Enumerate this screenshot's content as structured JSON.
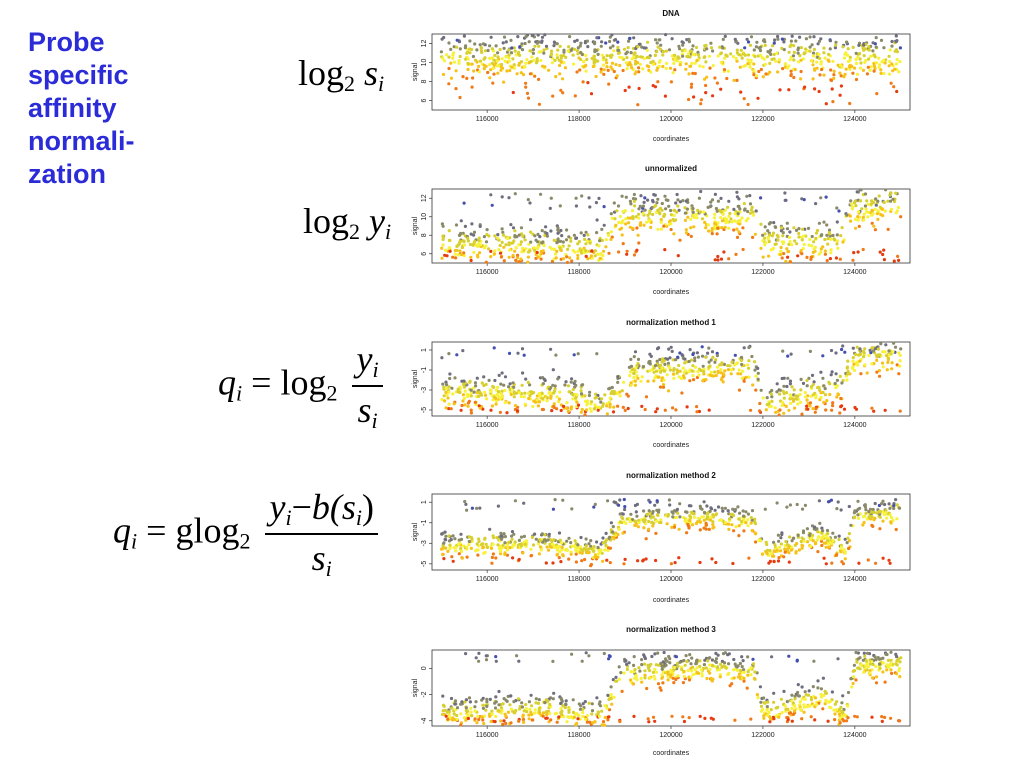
{
  "title_lines": [
    "Probe",
    "specific",
    "affinity",
    "normali-",
    "zation"
  ],
  "formulas": {
    "f1": {
      "base": "log",
      "sub": "2",
      "var": "s",
      "var_sub": "i"
    },
    "f2": {
      "base": "log",
      "sub": "2",
      "var": "y",
      "var_sub": "i"
    },
    "f3": {
      "lhs": "q",
      "lhs_sub": "i",
      "eq": "=",
      "base": "log",
      "sub": "2",
      "num": "y",
      "num_sub": "i",
      "den": "s",
      "den_sub": "i"
    },
    "f4": {
      "lhs": "q",
      "lhs_sub": "i",
      "eq": "=",
      "base": "glog",
      "sub": "2",
      "num_a": "y",
      "num_a_sub": "i",
      "minus": "−",
      "num_b": "b(s",
      "num_b_sub": "i",
      "num_b_close": ")",
      "den": "s",
      "den_sub": "i"
    }
  },
  "colors": {
    "title": "#2b2bd8"
  },
  "chart_data": [
    {
      "type": "scatter",
      "title": "DNA",
      "xlabel": "coordinates",
      "ylabel": "signal",
      "xlim": [
        114800,
        125200
      ],
      "ylim": [
        5,
        13
      ],
      "xticks": [
        116000,
        118000,
        120000,
        122000,
        124000
      ],
      "yticks": [
        6,
        8,
        10,
        12
      ],
      "x_range": [
        115000,
        125000
      ],
      "profile": [
        [
          115000,
          10.5
        ],
        [
          125000,
          10.5
        ]
      ],
      "spread": 1.2,
      "low_tail": [
        5.5,
        8
      ],
      "high_tail": [
        11.5,
        12.8
      ],
      "color_scale": [
        "#e63b10",
        "#f07a18",
        "#f6c21a",
        "#f8f23a",
        "#d8d030",
        "#8a8a6a",
        "#6e6e7e",
        "#4450b0"
      ],
      "n_points": 900
    },
    {
      "type": "scatter",
      "title": "unnormalized",
      "xlabel": "coordinates",
      "ylabel": "signal",
      "xlim": [
        114800,
        125200
      ],
      "ylim": [
        5,
        13
      ],
      "xticks": [
        116000,
        118000,
        120000,
        122000,
        124000
      ],
      "yticks": [
        6,
        8,
        10,
        12
      ],
      "x_range": [
        115000,
        125000
      ],
      "profile": [
        [
          115000,
          7.2
        ],
        [
          118500,
          6.6
        ],
        [
          118800,
          10.2
        ],
        [
          121800,
          10.0
        ],
        [
          122000,
          7.2
        ],
        [
          123700,
          7.4
        ],
        [
          123900,
          11.0
        ],
        [
          125000,
          11.3
        ]
      ],
      "spread": 1.1,
      "low_tail": [
        5.2,
        6.5
      ],
      "high_tail": [
        10.5,
        12.6
      ],
      "color_scale": [
        "#e63b10",
        "#f07a18",
        "#f6c21a",
        "#f8f23a",
        "#d8d030",
        "#8a8a6a",
        "#6e6e7e",
        "#4450b0"
      ],
      "n_points": 900
    },
    {
      "type": "scatter",
      "title": "normalization method 1",
      "xlabel": "coordinates",
      "ylabel": "signal",
      "xlim": [
        114800,
        125200
      ],
      "ylim": [
        -5.6,
        1.8
      ],
      "xticks": [
        116000,
        118000,
        120000,
        122000,
        124000
      ],
      "yticks": [
        -5,
        -3,
        -1,
        1
      ],
      "x_range": [
        115000,
        125000
      ],
      "profile": [
        [
          115000,
          -3.2
        ],
        [
          117500,
          -3.4
        ],
        [
          118500,
          -4.5
        ],
        [
          119200,
          -1.2
        ],
        [
          121800,
          -0.6
        ],
        [
          122000,
          -4.3
        ],
        [
          123700,
          -2.6
        ],
        [
          124000,
          0.2
        ],
        [
          125000,
          0.6
        ]
      ],
      "spread": 0.9,
      "low_tail": [
        -5.3,
        -4.5
      ],
      "high_tail": [
        0.2,
        1.4
      ],
      "color_scale": [
        "#e63b10",
        "#f07a18",
        "#f6c21a",
        "#f8f23a",
        "#d8d030",
        "#8a8a6a",
        "#6e6e7e",
        "#4450b0"
      ],
      "n_points": 900
    },
    {
      "type": "scatter",
      "title": "normalization method 2",
      "xlabel": "coordinates",
      "ylabel": "signal",
      "xlim": [
        114800,
        125200
      ],
      "ylim": [
        -5.6,
        1.8
      ],
      "xticks": [
        116000,
        118000,
        120000,
        122000,
        124000
      ],
      "yticks": [
        -5,
        -3,
        -1,
        1
      ],
      "x_range": [
        115000,
        125000
      ],
      "profile": [
        [
          115000,
          -3.2
        ],
        [
          117300,
          -3.0
        ],
        [
          118500,
          -3.8
        ],
        [
          118900,
          -1.0
        ],
        [
          120500,
          -0.4
        ],
        [
          121800,
          -0.8
        ],
        [
          122000,
          -3.7
        ],
        [
          123300,
          -2.2
        ],
        [
          123800,
          -3.8
        ],
        [
          124000,
          -0.5
        ],
        [
          125000,
          0.0
        ]
      ],
      "spread": 0.6,
      "low_tail": [
        -5.0,
        -4.4
      ],
      "high_tail": [
        0.2,
        1.3
      ],
      "color_scale": [
        "#e63b10",
        "#f07a18",
        "#f6c21a",
        "#f8f23a",
        "#d8d030",
        "#8a8a6a",
        "#6e6e7e",
        "#4450b0"
      ],
      "n_points": 900
    },
    {
      "type": "scatter",
      "title": "normalization method 3",
      "xlabel": "coordinates",
      "ylabel": "signal",
      "xlim": [
        114800,
        125200
      ],
      "ylim": [
        -4.4,
        1.4
      ],
      "xticks": [
        116000,
        118000,
        120000,
        122000,
        124000
      ],
      "yticks": [
        -4,
        -2,
        0
      ],
      "x_range": [
        115000,
        125000
      ],
      "profile": [
        [
          115000,
          -3.4
        ],
        [
          117300,
          -3.0
        ],
        [
          118500,
          -3.6
        ],
        [
          118900,
          -0.6
        ],
        [
          120500,
          0.1
        ],
        [
          121800,
          -0.3
        ],
        [
          122000,
          -3.4
        ],
        [
          123300,
          -2.0
        ],
        [
          123800,
          -3.6
        ],
        [
          124000,
          0.1
        ],
        [
          125000,
          0.4
        ]
      ],
      "spread": 0.55,
      "low_tail": [
        -4.1,
        -3.6
      ],
      "high_tail": [
        0.5,
        1.2
      ],
      "color_scale": [
        "#e63b10",
        "#f07a18",
        "#f6c21a",
        "#f8f23a",
        "#d8d030",
        "#8a8a6a",
        "#6e6e7e",
        "#4450b0"
      ],
      "n_points": 900
    }
  ]
}
